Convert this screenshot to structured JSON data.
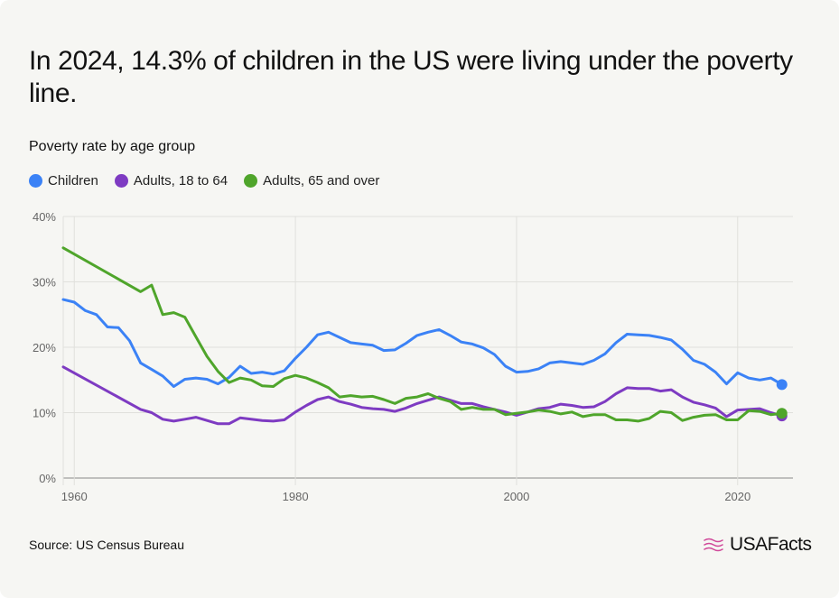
{
  "title": "In 2024, 14.3% of children in the US were living under the poverty line.",
  "subtitle": "Poverty rate by age group",
  "source": "Source: US Census Bureau",
  "brand": {
    "name": "USAFacts"
  },
  "chart_data": {
    "type": "line",
    "title": "Poverty rate by age group",
    "xlabel": "",
    "ylabel": "",
    "xlim": [
      1959,
      2025
    ],
    "ylim": [
      0,
      40
    ],
    "grid": true,
    "legend_position": "top-left",
    "yticks": [
      0,
      10,
      20,
      30,
      40
    ],
    "ytick_labels": [
      "0%",
      "10%",
      "20%",
      "30%",
      "40%"
    ],
    "xticks": [
      1960,
      1980,
      2000,
      2020
    ],
    "xtick_labels": [
      "1960",
      "1980",
      "2000",
      "2020"
    ],
    "series": [
      {
        "name": "Children",
        "color": "#3b82f6",
        "x": [
          1959,
          1960,
          1961,
          1962,
          1963,
          1964,
          1965,
          1966,
          1967,
          1968,
          1969,
          1970,
          1971,
          1972,
          1973,
          1974,
          1975,
          1976,
          1977,
          1978,
          1979,
          1980,
          1981,
          1982,
          1983,
          1984,
          1985,
          1986,
          1987,
          1988,
          1989,
          1990,
          1991,
          1992,
          1993,
          1994,
          1995,
          1996,
          1997,
          1998,
          1999,
          2000,
          2001,
          2002,
          2003,
          2004,
          2005,
          2006,
          2007,
          2008,
          2009,
          2010,
          2011,
          2012,
          2013,
          2014,
          2015,
          2016,
          2017,
          2018,
          2019,
          2020,
          2021,
          2022,
          2023,
          2024
        ],
        "values": [
          27.3,
          26.9,
          25.6,
          25.0,
          23.1,
          23.0,
          21.0,
          17.6,
          16.6,
          15.6,
          14.0,
          15.1,
          15.3,
          15.1,
          14.4,
          15.4,
          17.1,
          16.0,
          16.2,
          15.9,
          16.4,
          18.3,
          20.0,
          21.9,
          22.3,
          21.5,
          20.7,
          20.5,
          20.3,
          19.5,
          19.6,
          20.6,
          21.8,
          22.3,
          22.7,
          21.8,
          20.8,
          20.5,
          19.9,
          18.9,
          17.1,
          16.2,
          16.3,
          16.7,
          17.6,
          17.8,
          17.6,
          17.4,
          18.0,
          19.0,
          20.7,
          22.0,
          21.9,
          21.8,
          21.5,
          21.1,
          19.7,
          18.0,
          17.4,
          16.2,
          14.4,
          16.1,
          15.3,
          15.0,
          15.3,
          14.3
        ]
      },
      {
        "name": "Adults, 18 to 64",
        "color": "#7e3bc2",
        "x": [
          1959,
          1966,
          1967,
          1968,
          1969,
          1970,
          1971,
          1972,
          1973,
          1974,
          1975,
          1976,
          1977,
          1978,
          1979,
          1980,
          1981,
          1982,
          1983,
          1984,
          1985,
          1986,
          1987,
          1988,
          1989,
          1990,
          1991,
          1992,
          1993,
          1994,
          1995,
          1996,
          1997,
          1998,
          1999,
          2000,
          2001,
          2002,
          2003,
          2004,
          2005,
          2006,
          2007,
          2008,
          2009,
          2010,
          2011,
          2012,
          2013,
          2014,
          2015,
          2016,
          2017,
          2018,
          2019,
          2020,
          2021,
          2022,
          2023,
          2024
        ],
        "values": [
          17.0,
          10.5,
          10.0,
          9.0,
          8.7,
          9.0,
          9.3,
          8.8,
          8.3,
          8.3,
          9.2,
          9.0,
          8.8,
          8.7,
          8.9,
          10.1,
          11.1,
          12.0,
          12.4,
          11.7,
          11.3,
          10.8,
          10.6,
          10.5,
          10.2,
          10.7,
          11.4,
          11.9,
          12.4,
          11.9,
          11.4,
          11.4,
          10.9,
          10.5,
          10.1,
          9.6,
          10.1,
          10.6,
          10.8,
          11.3,
          11.1,
          10.8,
          10.9,
          11.7,
          12.9,
          13.8,
          13.7,
          13.7,
          13.3,
          13.5,
          12.4,
          11.6,
          11.2,
          10.7,
          9.4,
          10.4,
          10.5,
          10.6,
          10.0,
          9.5
        ]
      },
      {
        "name": "Adults, 65 and over",
        "color": "#4fa52b",
        "x": [
          1959,
          1966,
          1967,
          1968,
          1969,
          1970,
          1971,
          1972,
          1973,
          1974,
          1975,
          1976,
          1977,
          1978,
          1979,
          1980,
          1981,
          1982,
          1983,
          1984,
          1985,
          1986,
          1987,
          1988,
          1989,
          1990,
          1991,
          1992,
          1993,
          1994,
          1995,
          1996,
          1997,
          1998,
          1999,
          2000,
          2001,
          2002,
          2003,
          2004,
          2005,
          2006,
          2007,
          2008,
          2009,
          2010,
          2011,
          2012,
          2013,
          2014,
          2015,
          2016,
          2017,
          2018,
          2019,
          2020,
          2021,
          2022,
          2023,
          2024
        ],
        "values": [
          35.2,
          28.5,
          29.5,
          25.0,
          25.3,
          24.6,
          21.6,
          18.6,
          16.3,
          14.6,
          15.3,
          15.0,
          14.1,
          14.0,
          15.2,
          15.7,
          15.3,
          14.6,
          13.8,
          12.4,
          12.6,
          12.4,
          12.5,
          12.0,
          11.4,
          12.2,
          12.4,
          12.9,
          12.2,
          11.7,
          10.5,
          10.8,
          10.5,
          10.5,
          9.7,
          9.9,
          10.1,
          10.4,
          10.2,
          9.8,
          10.1,
          9.4,
          9.7,
          9.7,
          8.9,
          8.9,
          8.7,
          9.1,
          10.2,
          10.0,
          8.8,
          9.3,
          9.6,
          9.7,
          8.9,
          8.9,
          10.3,
          10.2,
          9.7,
          9.9
        ]
      }
    ]
  }
}
